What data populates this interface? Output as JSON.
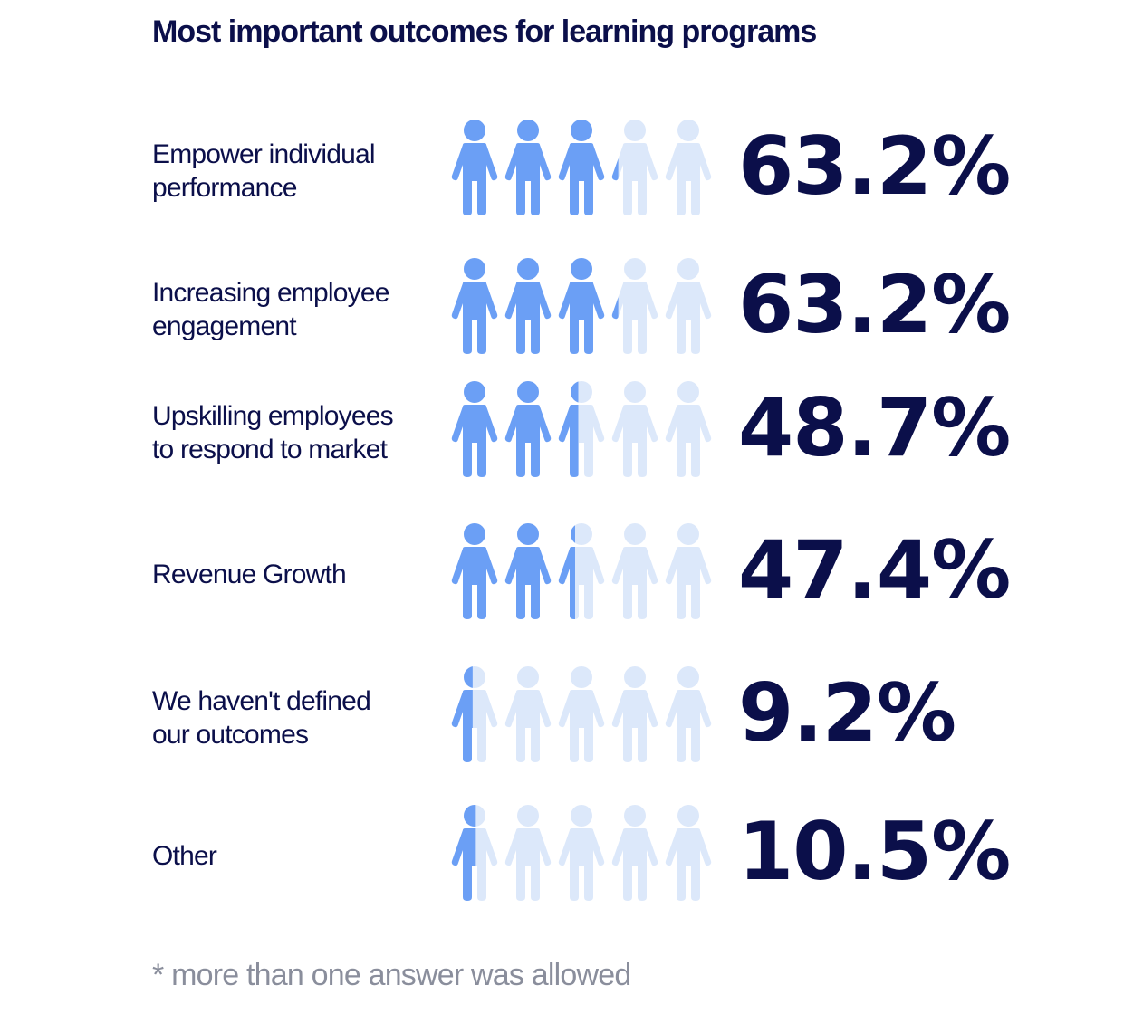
{
  "chart_data": {
    "type": "pictogram",
    "title": "Most important outcomes for learning programs",
    "icons_per_row": 5,
    "categories": [
      "Empower individual\nperformance",
      "Increasing employee\nengagement",
      "Upskilling employees\nto respond to market",
      "Revenue Growth",
      "We haven't defined\nour outcomes",
      "Other"
    ],
    "values": [
      63.2,
      63.2,
      48.7,
      47.4,
      9.2,
      10.5
    ],
    "value_labels": [
      "63.2%",
      "63.2%",
      "48.7%",
      "47.4%",
      "9.2%",
      "10.5%"
    ],
    "colors": {
      "filled": "#6b9ff5",
      "empty": "#dce8fa"
    },
    "footnote": "* more than one answer was allowed"
  }
}
